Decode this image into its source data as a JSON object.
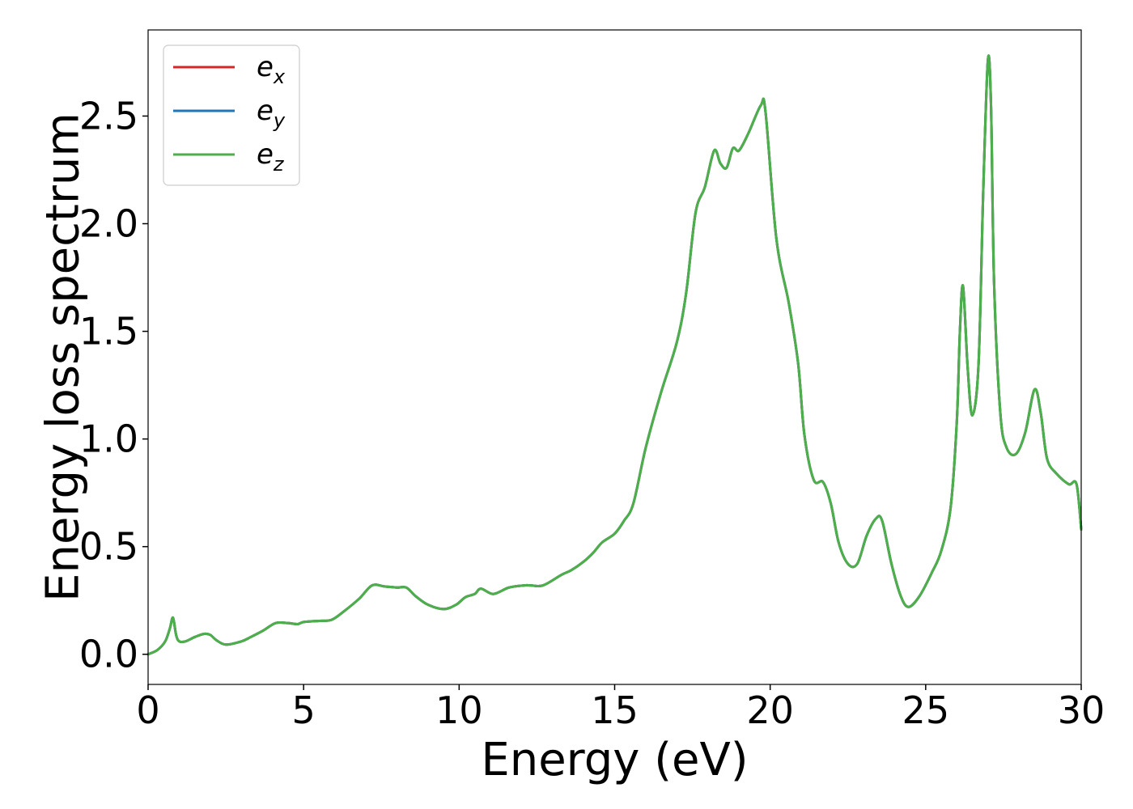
{
  "chart_data": {
    "type": "line",
    "xlabel": "Energy (eV)",
    "ylabel": "Energy loss spectrum",
    "xlim": [
      0,
      30
    ],
    "ylim": [
      -0.14,
      2.9
    ],
    "xticks": [
      0,
      5,
      10,
      15,
      20,
      25,
      30
    ],
    "xtick_labels": [
      "0",
      "5",
      "10",
      "15",
      "20",
      "25",
      "30"
    ],
    "yticks": [
      0.0,
      0.5,
      1.0,
      1.5,
      2.0,
      2.5
    ],
    "ytick_labels": [
      "0.0",
      "0.5",
      "1.0",
      "1.5",
      "2.0",
      "2.5"
    ],
    "grid": false,
    "legend": {
      "placement": "top-left",
      "entries": [
        {
          "base": "e",
          "sub": "x",
          "color": "#d62728"
        },
        {
          "base": "e",
          "sub": "y",
          "color": "#1f77b4"
        },
        {
          "base": "e",
          "sub": "z",
          "color": "#4daf4a"
        }
      ]
    },
    "x": [
      0,
      0.3,
      0.55,
      0.7,
      0.8,
      0.9,
      1.0,
      1.2,
      1.5,
      1.8,
      2.0,
      2.2,
      2.5,
      3.0,
      3.3,
      3.7,
      4.1,
      4.5,
      4.8,
      5.0,
      5.5,
      5.9,
      6.3,
      6.8,
      7.2,
      7.6,
      8.0,
      8.3,
      8.6,
      9.0,
      9.5,
      9.9,
      10.2,
      10.5,
      10.7,
      11.1,
      11.6,
      12.1,
      12.3,
      12.7,
      13.3,
      13.6,
      14.0,
      14.3,
      14.6,
      15.0,
      15.3,
      15.6,
      16.0,
      16.5,
      17.0,
      17.3,
      17.6,
      17.9,
      18.2,
      18.4,
      18.6,
      18.8,
      19.0,
      19.3,
      19.7,
      19.85,
      20.2,
      20.6,
      20.9,
      21.1,
      21.4,
      21.7,
      21.95,
      22.2,
      22.5,
      22.8,
      23.1,
      23.4,
      23.6,
      23.9,
      24.2,
      24.45,
      24.8,
      25.2,
      25.5,
      25.8,
      26.0,
      26.1,
      26.2,
      26.35,
      26.5,
      26.7,
      26.85,
      27.0,
      27.1,
      27.2,
      27.4,
      27.6,
      27.9,
      28.2,
      28.5,
      28.7,
      28.9,
      29.2,
      29.6,
      29.85,
      30.0
    ],
    "series": [
      {
        "name": "e_x",
        "color": "#d62728",
        "values": [
          0,
          0.02,
          0.06,
          0.12,
          0.17,
          0.09,
          0.06,
          0.06,
          0.08,
          0.095,
          0.09,
          0.065,
          0.045,
          0.06,
          0.08,
          0.11,
          0.145,
          0.145,
          0.14,
          0.15,
          0.155,
          0.16,
          0.2,
          0.26,
          0.32,
          0.315,
          0.31,
          0.31,
          0.27,
          0.23,
          0.21,
          0.23,
          0.265,
          0.28,
          0.305,
          0.28,
          0.31,
          0.32,
          0.32,
          0.32,
          0.37,
          0.39,
          0.43,
          0.47,
          0.52,
          0.56,
          0.62,
          0.7,
          0.96,
          1.22,
          1.45,
          1.68,
          2.05,
          2.17,
          2.34,
          2.28,
          2.26,
          2.35,
          2.34,
          2.42,
          2.55,
          2.52,
          1.93,
          1.63,
          1.35,
          1.02,
          0.81,
          0.8,
          0.7,
          0.52,
          0.42,
          0.42,
          0.55,
          0.63,
          0.62,
          0.42,
          0.27,
          0.22,
          0.27,
          0.38,
          0.48,
          0.68,
          1.08,
          1.5,
          1.71,
          1.33,
          1.11,
          1.35,
          2.15,
          2.76,
          2.55,
          1.72,
          1.12,
          0.96,
          0.93,
          1.03,
          1.23,
          1.12,
          0.91,
          0.84,
          0.79,
          0.79,
          0.58
        ]
      },
      {
        "name": "e_y",
        "color": "#1f77b4",
        "values": [
          0,
          0.02,
          0.06,
          0.12,
          0.17,
          0.09,
          0.06,
          0.06,
          0.08,
          0.095,
          0.09,
          0.065,
          0.045,
          0.06,
          0.08,
          0.11,
          0.145,
          0.145,
          0.14,
          0.15,
          0.155,
          0.16,
          0.2,
          0.26,
          0.32,
          0.315,
          0.31,
          0.31,
          0.27,
          0.23,
          0.21,
          0.23,
          0.265,
          0.28,
          0.305,
          0.28,
          0.31,
          0.32,
          0.32,
          0.32,
          0.37,
          0.39,
          0.43,
          0.47,
          0.52,
          0.56,
          0.62,
          0.7,
          0.96,
          1.22,
          1.45,
          1.68,
          2.05,
          2.17,
          2.34,
          2.28,
          2.26,
          2.35,
          2.34,
          2.42,
          2.55,
          2.52,
          1.93,
          1.63,
          1.35,
          1.02,
          0.81,
          0.8,
          0.7,
          0.52,
          0.42,
          0.42,
          0.55,
          0.63,
          0.62,
          0.42,
          0.27,
          0.22,
          0.27,
          0.38,
          0.48,
          0.68,
          1.08,
          1.5,
          1.71,
          1.33,
          1.11,
          1.35,
          2.15,
          2.76,
          2.55,
          1.72,
          1.12,
          0.96,
          0.93,
          1.03,
          1.23,
          1.12,
          0.91,
          0.84,
          0.79,
          0.79,
          0.58
        ]
      },
      {
        "name": "e_z",
        "color": "#4daf4a",
        "values": [
          0,
          0.02,
          0.06,
          0.12,
          0.17,
          0.09,
          0.06,
          0.06,
          0.08,
          0.095,
          0.09,
          0.065,
          0.045,
          0.06,
          0.08,
          0.11,
          0.145,
          0.145,
          0.14,
          0.15,
          0.155,
          0.16,
          0.2,
          0.26,
          0.32,
          0.315,
          0.31,
          0.31,
          0.27,
          0.23,
          0.21,
          0.23,
          0.265,
          0.28,
          0.305,
          0.28,
          0.31,
          0.32,
          0.32,
          0.32,
          0.37,
          0.39,
          0.43,
          0.47,
          0.52,
          0.56,
          0.62,
          0.7,
          0.96,
          1.22,
          1.45,
          1.68,
          2.05,
          2.17,
          2.34,
          2.28,
          2.26,
          2.35,
          2.34,
          2.42,
          2.55,
          2.52,
          1.93,
          1.63,
          1.35,
          1.02,
          0.81,
          0.8,
          0.7,
          0.52,
          0.42,
          0.42,
          0.55,
          0.63,
          0.62,
          0.42,
          0.27,
          0.22,
          0.27,
          0.38,
          0.48,
          0.68,
          1.08,
          1.5,
          1.71,
          1.33,
          1.11,
          1.35,
          2.15,
          2.76,
          2.55,
          1.72,
          1.12,
          0.96,
          0.93,
          1.03,
          1.23,
          1.12,
          0.91,
          0.84,
          0.79,
          0.79,
          0.58
        ]
      }
    ]
  }
}
